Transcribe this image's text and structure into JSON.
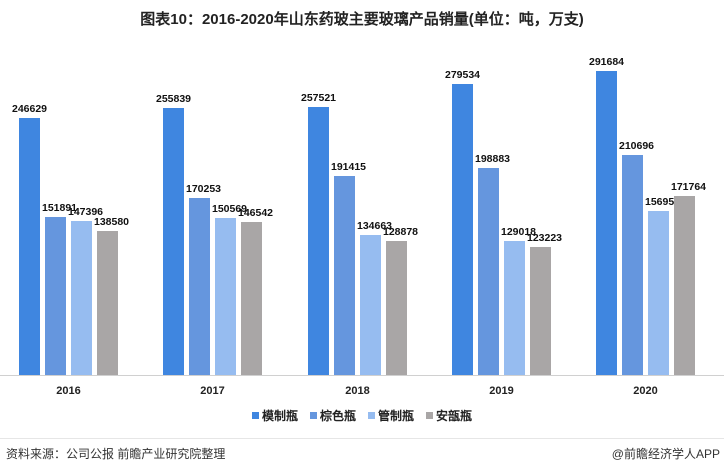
{
  "title": "图表10：2016-2020年山东药玻主要玻璃产品销量(单位：吨，万支)",
  "legend": [
    {
      "label": "模制瓶",
      "color": "#3f86e0"
    },
    {
      "label": "棕色瓶",
      "color": "#6596de"
    },
    {
      "label": "管制瓶",
      "color": "#96bcf0"
    },
    {
      "label": "安瓿瓶",
      "color": "#a9a6a6"
    }
  ],
  "footer": {
    "source": "资料来源：公司公报 前瞻产业研究院整理",
    "credit": "@前瞻经济学人APP"
  },
  "chart_data": {
    "type": "bar",
    "title": "图表10：2016-2020年山东药玻主要玻璃产品销量(单位：吨，万支)",
    "categories": [
      "2016",
      "2017",
      "2018",
      "2019",
      "2020"
    ],
    "series": [
      {
        "name": "模制瓶",
        "color": "#3f86e0",
        "values": [
          246629,
          255839,
          257521,
          279534,
          291684
        ]
      },
      {
        "name": "棕色瓶",
        "color": "#6596de",
        "values": [
          151891,
          170253,
          191415,
          198883,
          210696
        ]
      },
      {
        "name": "管制瓶",
        "color": "#96bcf0",
        "values": [
          147396,
          150569,
          134663,
          129018,
          156958
        ]
      },
      {
        "name": "安瓿瓶",
        "color": "#a9a6a6",
        "values": [
          138580,
          146542,
          128878,
          123223,
          171764
        ]
      }
    ],
    "xlabel": "",
    "ylabel": "",
    "ylim": [
      0,
      320000
    ],
    "grid": false,
    "legend_position": "bottom",
    "data_labels": true
  }
}
